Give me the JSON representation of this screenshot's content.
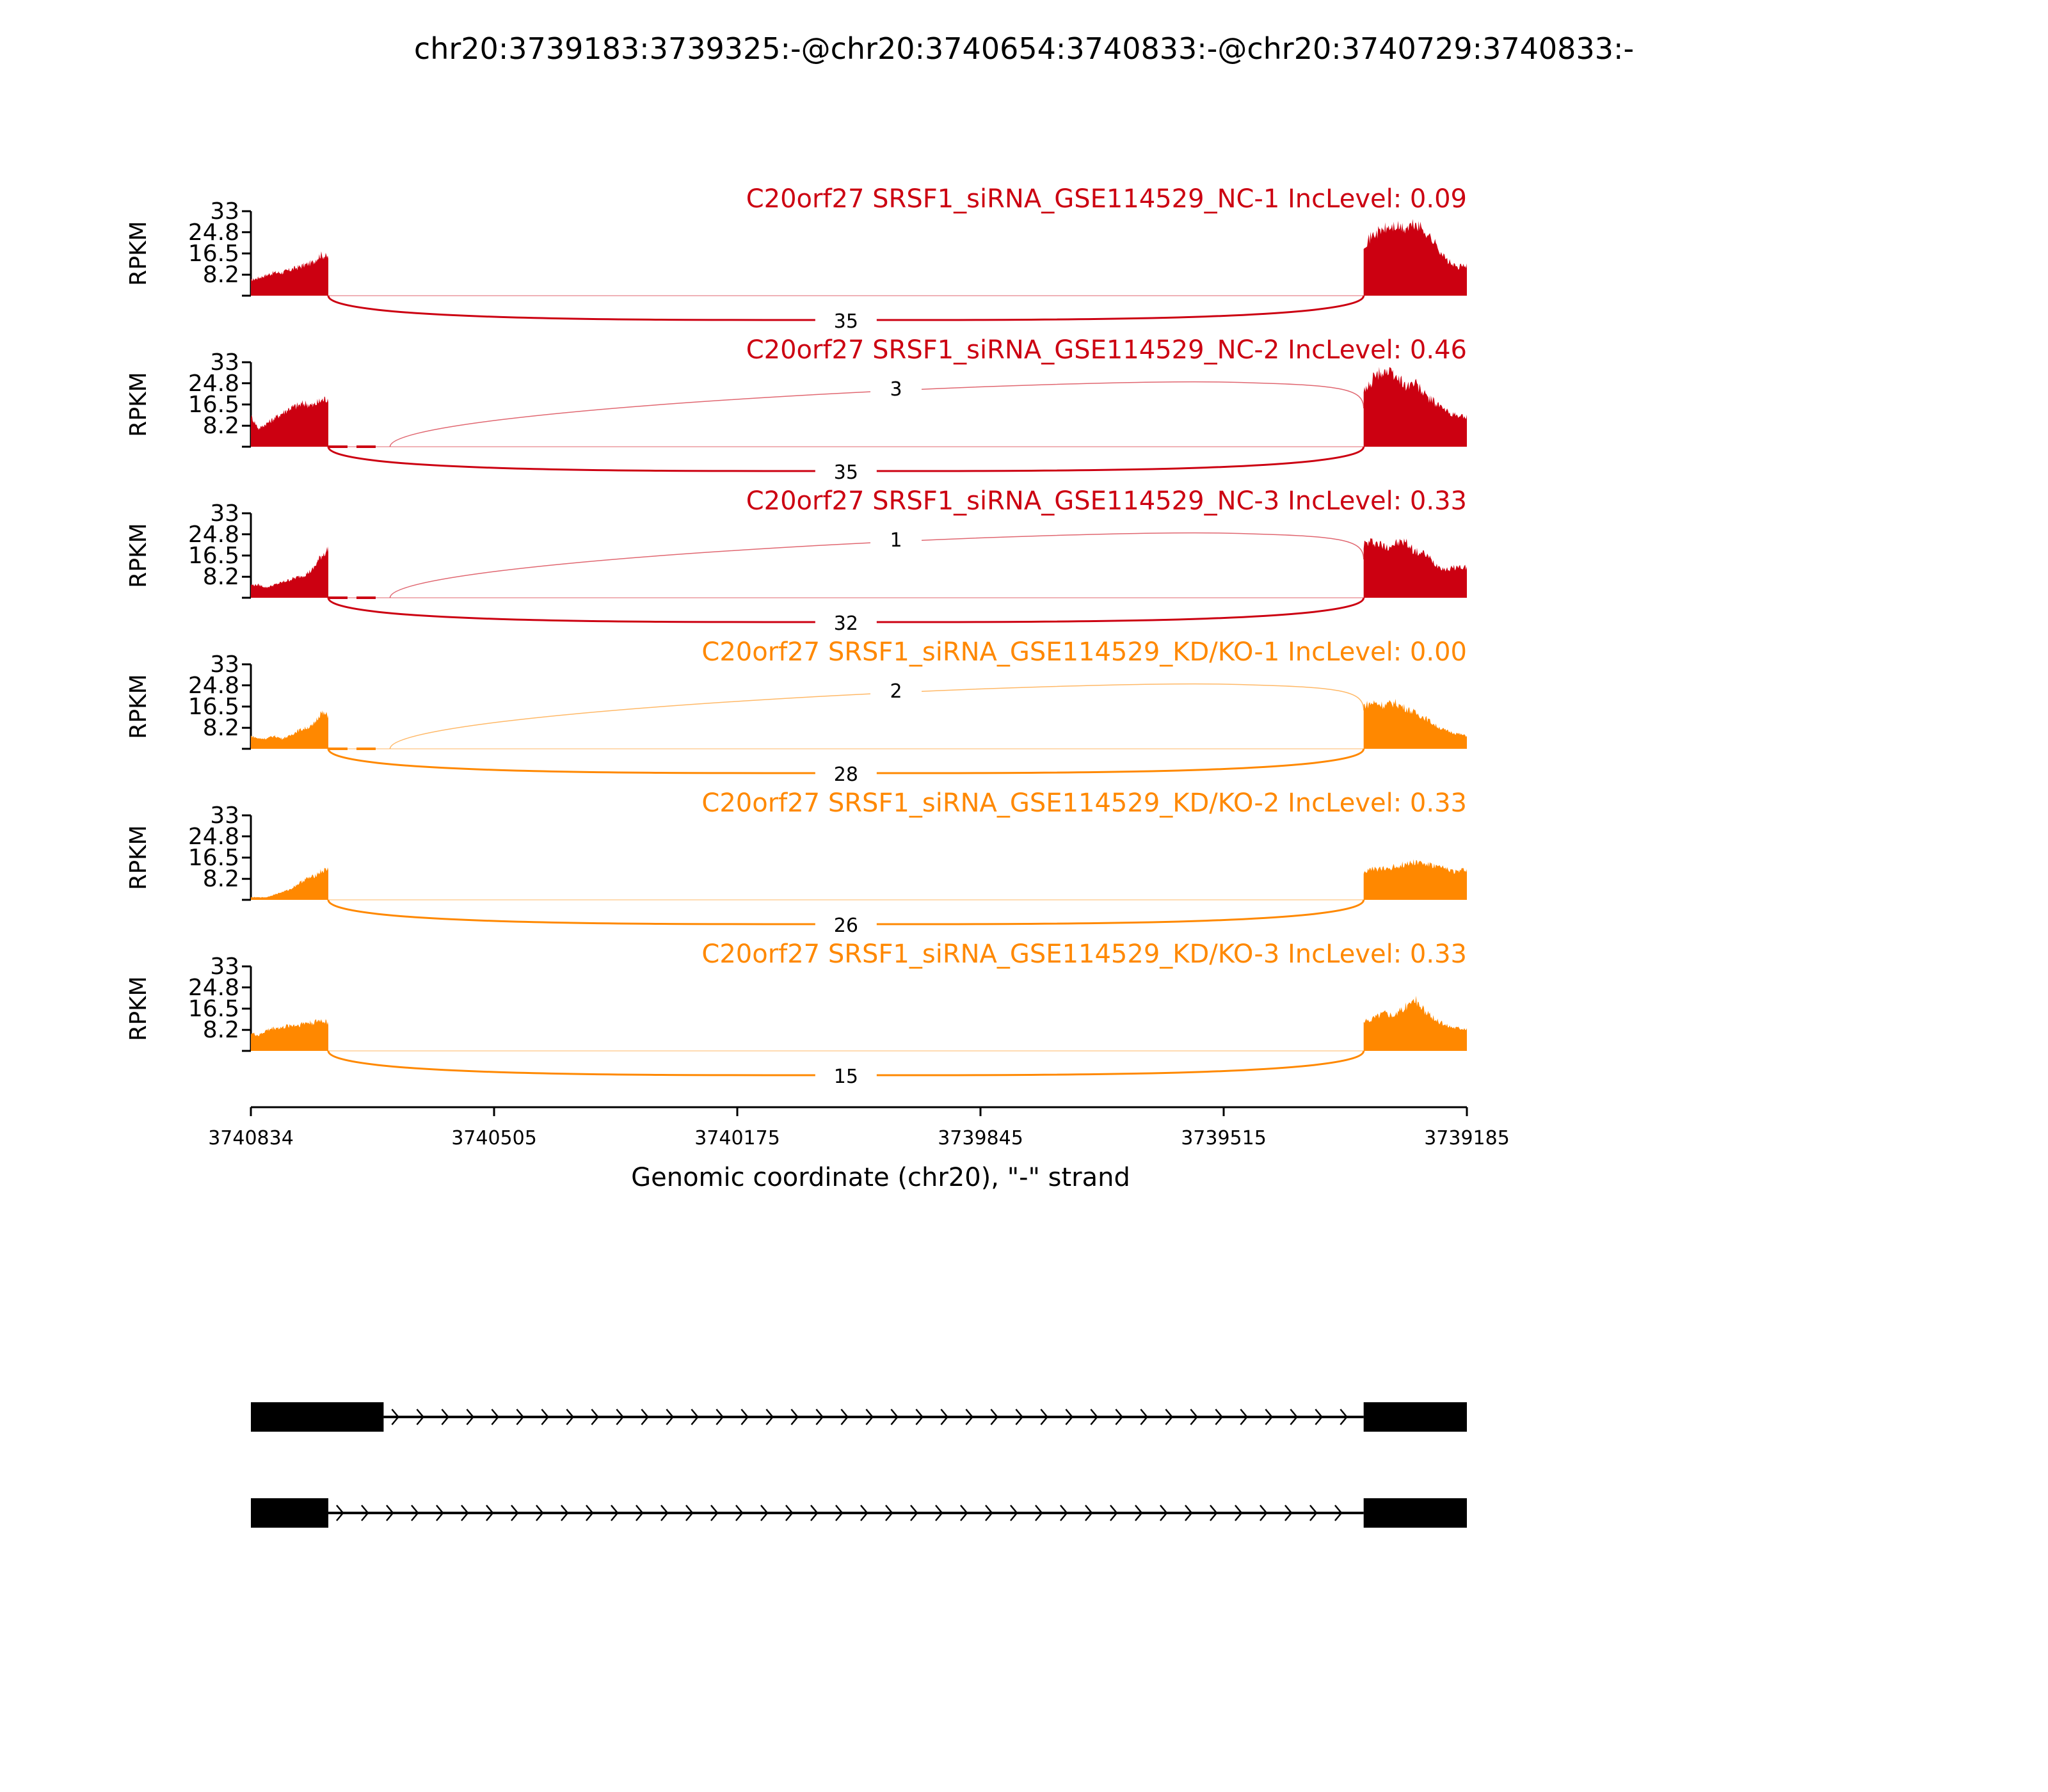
{
  "chart_data": {
    "type": "area",
    "title": "chr20:3739183:3739325:-@chr20:3740654:3740833:-@chr20:3740729:3740833:-",
    "xlabel": "Genomic coordinate (chr20), \"-\" strand",
    "ylabel": "RPKM",
    "xlim": [
      3740834,
      3739185
    ],
    "x_ticks": [
      "3740834",
      "3740505",
      "3740175",
      "3739845",
      "3739515",
      "3739185"
    ],
    "ylim": [
      0,
      33
    ],
    "y_ticks": [
      "33",
      "24.8",
      "16.5",
      "8.2"
    ],
    "colors": {
      "NC": "#CC0011",
      "KD": "#FF8800",
      "gene": "#000000"
    },
    "exons": {
      "left_start": 3740834,
      "left_end_short": 3740729,
      "left_end_long": 3740654,
      "right_start": 3739325,
      "right_end": 3739185
    },
    "samples": [
      {
        "title": "C20orf27 SRSF1_siRNA_GSE114529_NC-1 IncLevel: 0.09",
        "group": "NC",
        "left": [
          6,
          7,
          8,
          9,
          9,
          10,
          11,
          12,
          13,
          16,
          15
        ],
        "right": [
          20,
          24,
          26,
          27,
          26,
          28,
          25,
          20,
          14,
          11,
          12
        ],
        "skip_count": "35",
        "inc_count": null
      },
      {
        "title": "C20orf27 SRSF1_siRNA_GSE114529_NC-2 IncLevel: 0.46",
        "group": "NC",
        "left": [
          12,
          7,
          9,
          11,
          13,
          15,
          16,
          17,
          16,
          18,
          19
        ],
        "right": [
          21,
          27,
          30,
          28,
          24,
          25,
          20,
          17,
          14,
          12,
          12
        ],
        "skip_count": "35",
        "inc_count": "3"
      },
      {
        "title": "C20orf27 SRSF1_siRNA_GSE114529_NC-3 IncLevel: 0.33",
        "group": "NC",
        "left": [
          5,
          5,
          4,
          5,
          6,
          7,
          8,
          9,
          11,
          16,
          19
        ],
        "right": [
          21,
          22,
          20,
          21,
          22,
          18,
          17,
          13,
          11,
          12,
          12
        ],
        "skip_count": "32",
        "inc_count": "1"
      },
      {
        "title": "C20orf27 SRSF1_siRNA_GSE114529_KD/KO-1 IncLevel: 0.00",
        "group": "KD",
        "left": [
          5,
          4,
          4,
          5,
          4,
          5,
          7,
          8,
          9,
          14,
          13
        ],
        "right": [
          17,
          18,
          17,
          18,
          16,
          14,
          12,
          9,
          7,
          6,
          5
        ],
        "skip_count": "28",
        "inc_count": "2"
      },
      {
        "title": "C20orf27 SRSF1_siRNA_GSE114529_KD/KO-2 IncLevel: 0.33",
        "group": "KD",
        "left": [
          1,
          1,
          1,
          2,
          3,
          4,
          6,
          8,
          9,
          11,
          12
        ],
        "right": [
          11,
          12,
          12,
          13,
          14,
          15,
          14,
          13,
          12,
          11,
          12
        ],
        "skip_count": "26",
        "inc_count": null
      },
      {
        "title": "C20orf27 SRSF1_siRNA_GSE114529_KD/KO-3 IncLevel: 0.33",
        "group": "KD",
        "left": [
          7,
          6,
          8,
          9,
          9,
          10,
          10,
          11,
          11,
          12,
          11
        ],
        "right": [
          11,
          13,
          15,
          14,
          17,
          20,
          15,
          12,
          10,
          9,
          9
        ],
        "skip_count": "15",
        "inc_count": null
      }
    ],
    "isoforms": [
      "long left exon (3740834-3740654) + right exon",
      "short left exon (3740834-3740729) + right exon"
    ]
  }
}
